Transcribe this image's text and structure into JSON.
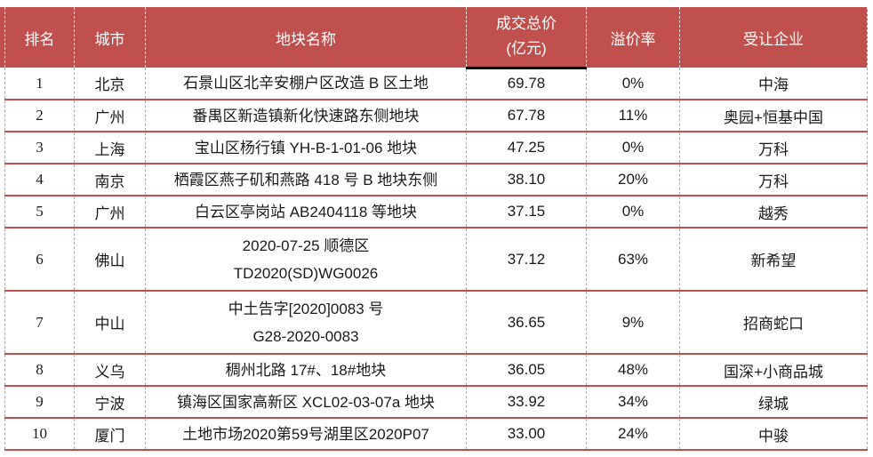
{
  "theme": {
    "page_bg": "#FFFFFF",
    "header_bg": "#C0504D",
    "header_text": "#FFFFFF",
    "row_line": "#C0504D",
    "dash_color": "#A9A9A9",
    "underline_color": "#000000",
    "body_text": "#1A1A1A"
  },
  "table": {
    "header": {
      "rank": "排名",
      "city": "城市",
      "name": "地块名称",
      "price_line1": "成交总价",
      "price_line2": "(亿元)",
      "premium": "溢价率",
      "buyer": "受让企业"
    },
    "rows": [
      {
        "rank": "1",
        "city": "北京",
        "name": [
          "石景山区北辛安棚户区改造 B 区土地"
        ],
        "price": "69.78",
        "premium": "0%",
        "buyer": "中海"
      },
      {
        "rank": "2",
        "city": "广州",
        "name": [
          "番禺区新造镇新化快速路东侧地块"
        ],
        "price": "67.78",
        "premium": "11%",
        "buyer": "奥园+恒基中国"
      },
      {
        "rank": "3",
        "city": "上海",
        "name": [
          "宝山区杨行镇 YH-B-1-01-06 地块"
        ],
        "price": "47.25",
        "premium": "0%",
        "buyer": "万科"
      },
      {
        "rank": "4",
        "city": "南京",
        "name": [
          "栖霞区燕子矶和燕路 418 号 B 地块东侧"
        ],
        "price": "38.10",
        "premium": "20%",
        "buyer": "万科"
      },
      {
        "rank": "5",
        "city": "广州",
        "name": [
          "白云区亭岗站 AB2404118 等地块"
        ],
        "price": "37.15",
        "premium": "0%",
        "buyer": "越秀"
      },
      {
        "rank": "6",
        "city": "佛山",
        "name": [
          "2020-07-25 顺德区",
          "TD2020(SD)WG0026"
        ],
        "price": "37.12",
        "premium": "63%",
        "buyer": "新希望"
      },
      {
        "rank": "7",
        "city": "中山",
        "name": [
          "中土告字[2020]0083 号",
          "G28-2020-0083"
        ],
        "price": "36.65",
        "premium": "9%",
        "buyer": "招商蛇口"
      },
      {
        "rank": "8",
        "city": "义乌",
        "name": [
          "稠州北路 17#、18#地块"
        ],
        "price": "36.05",
        "premium": "48%",
        "buyer": "国深+小商品城"
      },
      {
        "rank": "9",
        "city": "宁波",
        "name": [
          "镇海区国家高新区 XCL02-03-07a 地块"
        ],
        "price": "33.92",
        "premium": "34%",
        "buyer": "绿城"
      },
      {
        "rank": "10",
        "city": "厦门",
        "name": [
          "土地市场2020第59号湖里区2020P07"
        ],
        "price": "33.00",
        "premium": "24%",
        "buyer": "中骏"
      }
    ]
  }
}
